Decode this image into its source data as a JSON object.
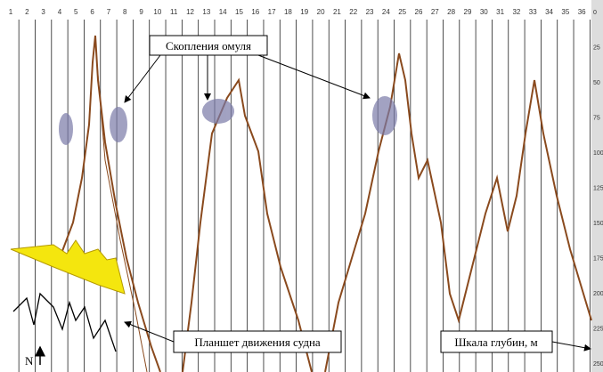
{
  "columns": [
    "1",
    "2",
    "3",
    "4",
    "5",
    "6",
    "7",
    "8",
    "9",
    "10",
    "11",
    "12",
    "13",
    "14",
    "15",
    "16",
    "17",
    "18",
    "19",
    "20",
    "21",
    "22",
    "23",
    "24",
    "25",
    "26",
    "27",
    "28",
    "29",
    "30",
    "31",
    "32",
    "33",
    "34",
    "35",
    "36"
  ],
  "depth_scale": [
    "0",
    "25",
    "50",
    "75",
    "100",
    "125",
    "150",
    "175",
    "200",
    "225",
    "250"
  ],
  "annotations": {
    "fish": "Скопления омуля",
    "track": "Планшет движения судна",
    "depth": "Шкала глубин, м",
    "north": "N"
  }
}
